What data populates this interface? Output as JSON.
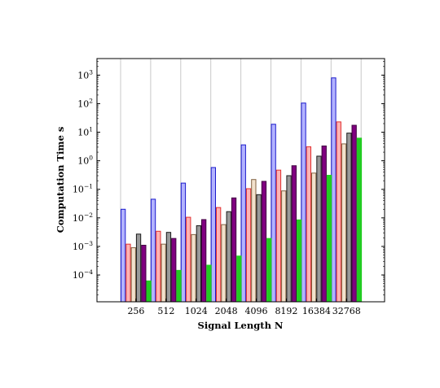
{
  "chart_data": {
    "type": "bar",
    "xlabel": "Signal Length N",
    "ylabel": "Computation Time s",
    "yscale": "log",
    "ylim": [
      1.15e-05,
      3800
    ],
    "y_ticks": [
      {
        "value": 0.0001,
        "base": "10",
        "exp": "−4"
      },
      {
        "value": 0.001,
        "base": "10",
        "exp": "−3"
      },
      {
        "value": 0.01,
        "base": "10",
        "exp": "−2"
      },
      {
        "value": 0.1,
        "base": "10",
        "exp": "−1"
      },
      {
        "value": 1,
        "base": "10",
        "exp": "0"
      },
      {
        "value": 10,
        "base": "10",
        "exp": "1"
      },
      {
        "value": 100,
        "base": "10",
        "exp": "2"
      },
      {
        "value": 1000,
        "base": "10",
        "exp": "3"
      }
    ],
    "categories": [
      "256",
      "512",
      "1024",
      "2048",
      "4096",
      "8192",
      "16384",
      "32768"
    ],
    "grid": "vertical",
    "legend": "none",
    "series": [
      {
        "fill": "#b3b3ff",
        "stroke": "#1a1acc",
        "values": [
          0.02,
          0.045,
          0.165,
          0.58,
          3.6,
          19,
          105,
          800
        ]
      },
      {
        "fill": "#ffb3b3",
        "stroke": "#e03030",
        "values": [
          0.0012,
          0.0034,
          0.0105,
          0.023,
          0.105,
          0.47,
          3.1,
          23
        ]
      },
      {
        "fill": "#f2e1cc",
        "stroke": "#806040",
        "values": [
          0.0009,
          0.0012,
          0.0026,
          0.0058,
          0.22,
          0.088,
          0.37,
          3.9
        ]
      },
      {
        "fill": "#999999",
        "stroke": "#1a1a1a",
        "values": [
          0.0027,
          0.0031,
          0.0053,
          0.0165,
          0.065,
          0.3,
          1.45,
          9.3
        ]
      },
      {
        "fill": "#800080",
        "stroke": "#400040",
        "values": [
          0.0011,
          0.0019,
          0.0087,
          0.05,
          0.19,
          0.67,
          3.3,
          17.5
        ]
      },
      {
        "fill": "#22cc22",
        "stroke": "#22cc22",
        "values": [
          6.2e-05,
          0.000145,
          0.00022,
          0.00046,
          0.0019,
          0.0085,
          0.31,
          6.2
        ]
      }
    ]
  }
}
